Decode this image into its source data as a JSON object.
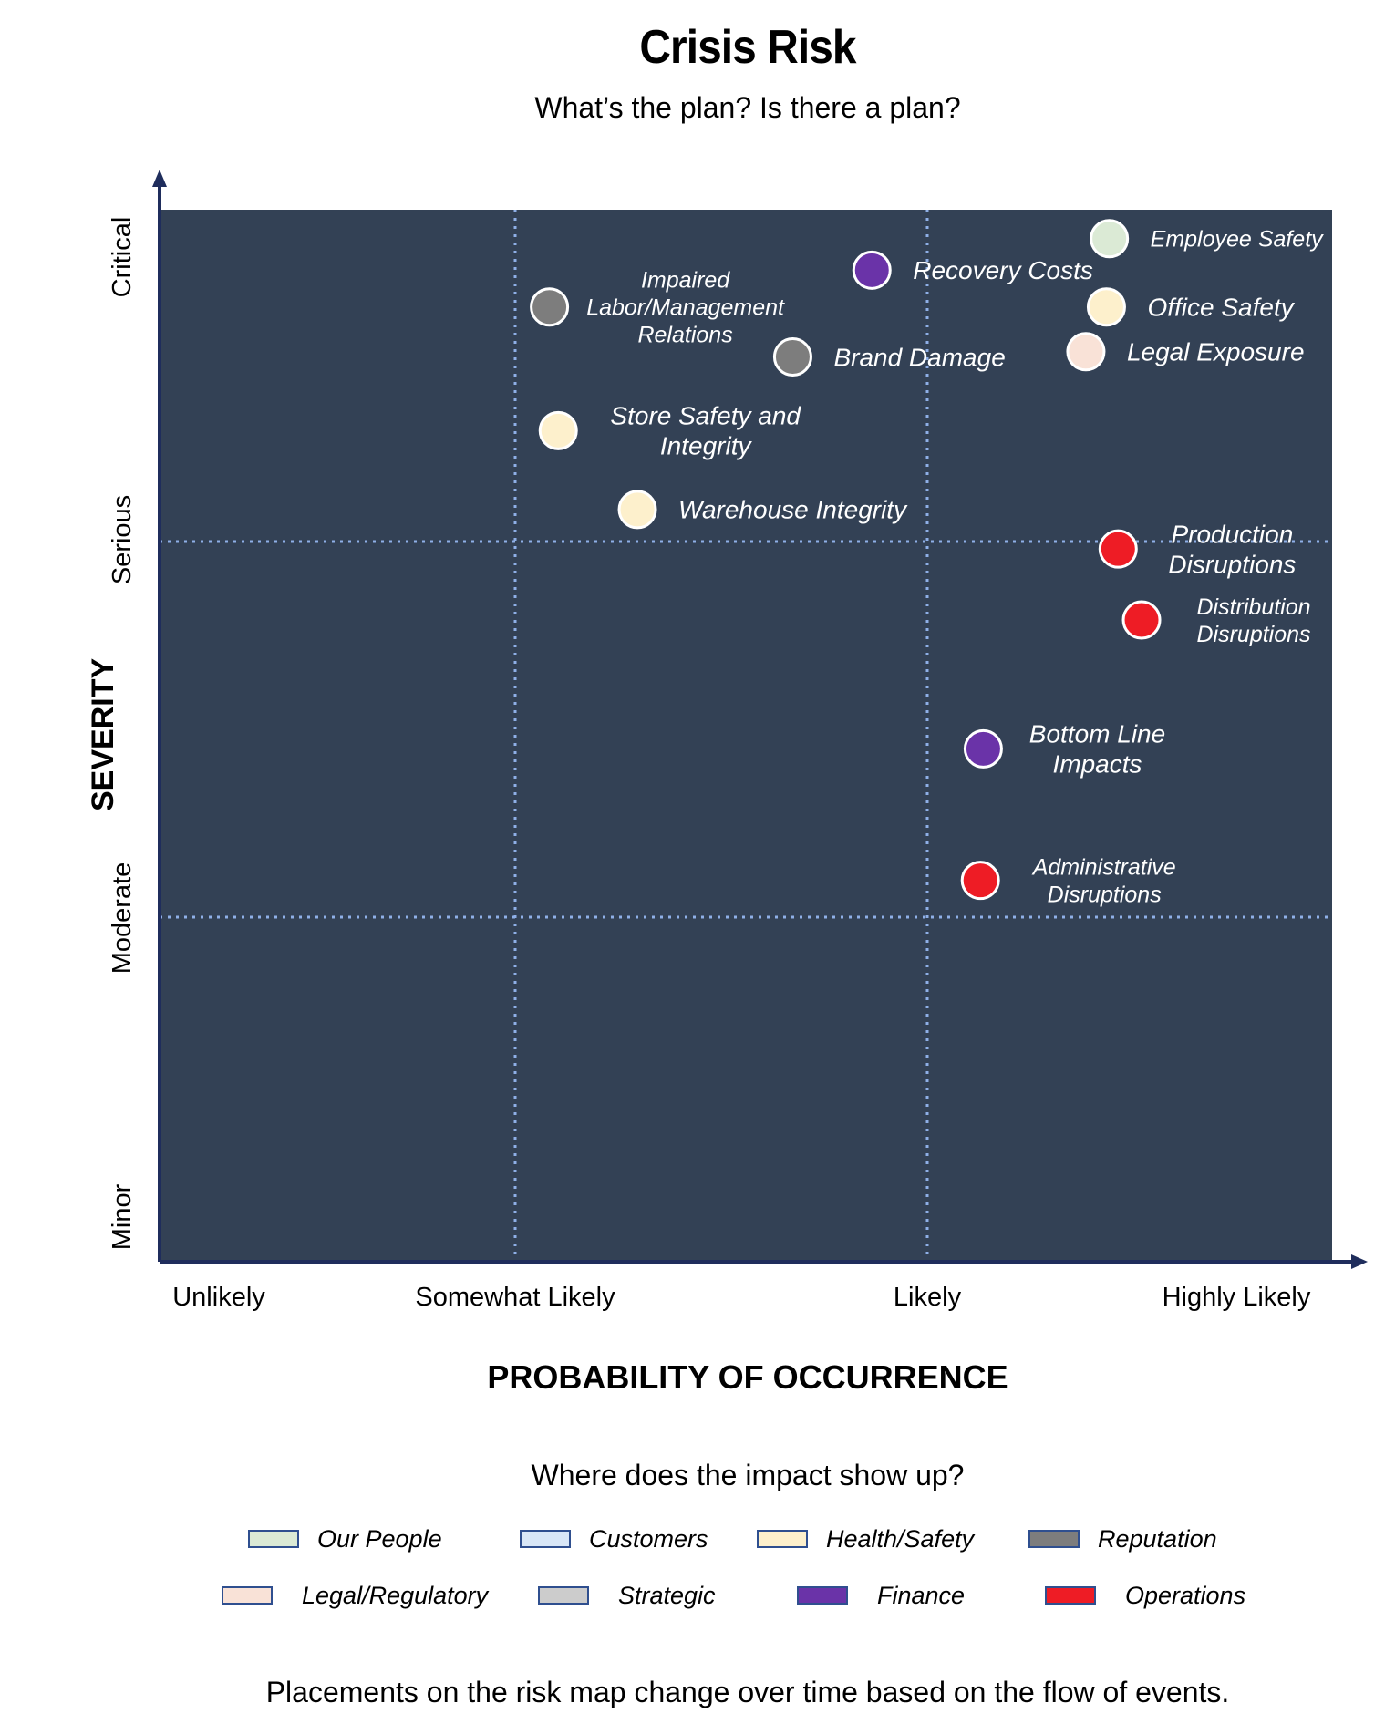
{
  "header": {
    "title": "Crisis Risk",
    "subtitle": "What’s the plan? Is there a plan?"
  },
  "chart_data": {
    "type": "scatter",
    "title": "Crisis Risk",
    "subtitle": "What’s the plan? Is there a plan?",
    "xlabel": "PROBABILITY OF OCCURRENCE",
    "ylabel": "SEVERITY",
    "x_categories": [
      "Unlikely",
      "Somewhat Likely",
      "Likely",
      "Highly Likely"
    ],
    "y_categories": [
      "Minor",
      "Moderate",
      "Serious",
      "Critical"
    ],
    "x_range": [
      0,
      4
    ],
    "y_range": [
      0,
      4
    ],
    "grid": "dotted quadrant lines",
    "background": "#334155",
    "points": [
      {
        "label": "Employee Safety",
        "x": 3.24,
        "y": 3.89,
        "category": "Our People",
        "color": "#dbead5",
        "label_side": "right"
      },
      {
        "label": "Recovery Costs",
        "x": 2.43,
        "y": 3.77,
        "category": "Finance",
        "color": "#6a33a8",
        "label_side": "right"
      },
      {
        "label": "Impaired Labor/Management Relations",
        "x": 1.33,
        "y": 3.63,
        "category": "Reputation",
        "color": "#7d7d7d",
        "label_side": "right-center"
      },
      {
        "label": "Office Safety",
        "x": 3.23,
        "y": 3.63,
        "category": "Health/Safety",
        "color": "#fdf0cc",
        "label_side": "right"
      },
      {
        "label": "Brand Damage",
        "x": 2.16,
        "y": 3.44,
        "category": "Reputation",
        "color": "#7d7d7d",
        "label_side": "right"
      },
      {
        "label": "Legal Exposure",
        "x": 3.16,
        "y": 3.46,
        "category": "Legal/Regulatory",
        "color": "#f9e2d7",
        "label_side": "right"
      },
      {
        "label": "Store Safety and Integrity",
        "x": 1.36,
        "y": 3.16,
        "category": "Health/Safety",
        "color": "#fdf0cc",
        "label_side": "right"
      },
      {
        "label": "Warehouse Integrity",
        "x": 1.63,
        "y": 2.86,
        "category": "Health/Safety",
        "color": "#fdf0cc",
        "label_side": "right"
      },
      {
        "label": "Production Disruptions",
        "x": 3.27,
        "y": 2.71,
        "category": "Operations",
        "color": "#ee1c25",
        "label_side": "right"
      },
      {
        "label": "Distribution Disruptions",
        "x": 3.35,
        "y": 2.44,
        "category": "Operations",
        "color": "#ee1c25",
        "label_side": "right"
      },
      {
        "label": "Bottom Line Impacts",
        "x": 2.81,
        "y": 1.95,
        "category": "Finance",
        "color": "#6a33a8",
        "label_side": "right"
      },
      {
        "label": "Administrative Disruptions",
        "x": 2.8,
        "y": 1.45,
        "category": "Operations",
        "color": "#ee1c25",
        "label_side": "right"
      }
    ]
  },
  "legend": {
    "title": "Where does the impact show up?",
    "items": [
      {
        "label": "Our People",
        "color": "#dbead5"
      },
      {
        "label": "Customers",
        "color": "#d9e7f7"
      },
      {
        "label": "Health/Safety",
        "color": "#fdf0cc"
      },
      {
        "label": "Reputation",
        "color": "#7d7d7d"
      },
      {
        "label": "Legal/Regulatory",
        "color": "#f9e2d7"
      },
      {
        "label": "Strategic",
        "color": "#cccccc"
      },
      {
        "label": "Finance",
        "color": "#6a33a8"
      },
      {
        "label": "Operations",
        "color": "#ee1c25"
      }
    ]
  },
  "footnote": "Placements on the risk map change over time based on the flow of events.",
  "colors": {
    "plot_background": "#334155",
    "axis": "#1f2d5c",
    "gridline": "#8fb0e8",
    "point_label": "#ffffff"
  }
}
